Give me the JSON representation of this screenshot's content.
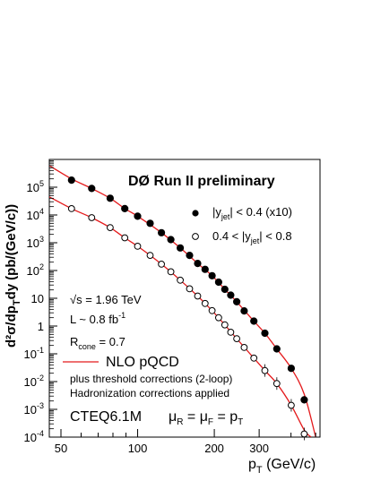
{
  "chart_data": {
    "type": "scatter",
    "title": "DØ Run II preliminary",
    "xlabel": "p",
    "xlabel_sub": "T",
    "xlabel_unit": " (GeV/c)",
    "ylabel": "d²σ/dp",
    "ylabel_sub1": "T",
    "ylabel_mid": "dy",
    "ylabel_unit": "(pb/(GeV/c))",
    "xscale": "log",
    "yscale": "log",
    "xlim": [
      45,
      520
    ],
    "ylim": [
      0.0001,
      1000000
    ],
    "grid": false,
    "legend_position": "top-right",
    "x_ticks": [
      {
        "value": 50,
        "label": "50"
      },
      {
        "value": 100,
        "label": "100"
      },
      {
        "value": 200,
        "label": "200"
      },
      {
        "value": 300,
        "label": "300"
      }
    ],
    "y_ticks": [
      {
        "value": 0.0001,
        "base": "10",
        "exp": "-4"
      },
      {
        "value": 0.001,
        "base": "10",
        "exp": "-3"
      },
      {
        "value": 0.01,
        "base": "10",
        "exp": "-2"
      },
      {
        "value": 0.1,
        "base": "10",
        "exp": "-1"
      },
      {
        "value": 1,
        "base": "1",
        "exp": ""
      },
      {
        "value": 10,
        "base": "10",
        "exp": ""
      },
      {
        "value": 100,
        "base": "10",
        "exp": "2"
      },
      {
        "value": 1000,
        "base": "10",
        "exp": "3"
      },
      {
        "value": 10000,
        "base": "10",
        "exp": "4"
      },
      {
        "value": 100000,
        "base": "10",
        "exp": "5"
      }
    ],
    "series": [
      {
        "name": "|y_jet| < 0.4 (x10)",
        "legend_pre": "|y",
        "legend_sub": "jet",
        "legend_post": "| < 0.4 (x10)",
        "marker": "filled-circle",
        "color": "#000000",
        "x": [
          55,
          66,
          78,
          89,
          100,
          112,
          124,
          135,
          147,
          160,
          172,
          184,
          196,
          208,
          220,
          232,
          245,
          262,
          286,
          316,
          352,
          401,
          451
        ],
        "y": [
          180000,
          90000,
          40000,
          17000,
          9000,
          5000,
          2300,
          1300,
          650,
          350,
          180,
          110,
          65,
          38,
          21,
          13,
          7.5,
          3.5,
          1.5,
          0.55,
          0.15,
          0.03,
          0.0022
        ]
      },
      {
        "name": "0.4 < |y_jet| < 0.8",
        "legend_pre": "0.4 < |y",
        "legend_sub": "jet",
        "legend_post": "| < 0.8",
        "marker": "open-circle",
        "color": "#000000",
        "x": [
          55,
          66,
          78,
          89,
          100,
          112,
          124,
          135,
          147,
          160,
          172,
          184,
          196,
          208,
          220,
          232,
          245,
          262,
          286,
          316,
          352,
          401,
          451
        ],
        "y": [
          17000,
          8000,
          3500,
          1500,
          750,
          350,
          170,
          90,
          45,
          22,
          12,
          6.5,
          3.6,
          2,
          1.1,
          0.6,
          0.35,
          0.17,
          0.07,
          0.025,
          0.0085,
          0.0014,
          0.00013
        ]
      }
    ],
    "curves": [
      {
        "name": "NLO pQCD",
        "color": "#e41a1c",
        "x": [
          45,
          55,
          66,
          78,
          89,
          100,
          124,
          147,
          172,
          196,
          220,
          245,
          286,
          316,
          352,
          401,
          451,
          500
        ],
        "y": [
          600000,
          200000,
          90000,
          40000,
          17000,
          9000,
          2300,
          650,
          180,
          65,
          21,
          7.5,
          1.5,
          0.55,
          0.15,
          0.03,
          0.0035,
          0.0001
        ]
      },
      {
        "name": "NLO pQCD",
        "color": "#e41a1c",
        "x": [
          45,
          55,
          66,
          78,
          89,
          100,
          124,
          147,
          172,
          196,
          220,
          245,
          286,
          316,
          352,
          401,
          451,
          480
        ],
        "y": [
          45000,
          17000,
          8000,
          3500,
          1500,
          750,
          170,
          45,
          12,
          3.6,
          1.1,
          0.35,
          0.07,
          0.025,
          0.0085,
          0.0014,
          0.00018,
          0.0001
        ]
      }
    ],
    "annotations": {
      "sqrt_s": "√s = 1.96 TeV",
      "lumi_pre": "L ~ 0.8 fb",
      "lumi_exp": "-1",
      "rcone_pre": "R",
      "rcone_sub": "cone",
      "rcone_post": " = 0.7",
      "nlo_label": "NLO pQCD",
      "threshold": "plus threshold corrections (2-loop)",
      "hadronization": "Hadronization corrections applied",
      "pdf": "CTEQ6.1M",
      "scale_mu1": "μ",
      "scale_r": "R",
      "scale_eq1": " = μ",
      "scale_f": "F",
      "scale_eq2": " = p",
      "scale_t": "T"
    }
  }
}
